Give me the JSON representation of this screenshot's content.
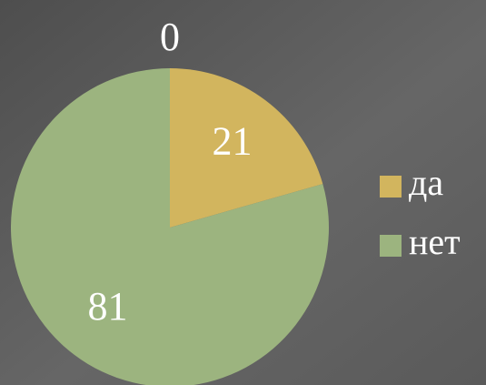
{
  "chart_data": {
    "type": "pie",
    "categories": [
      null,
      "да",
      "нет"
    ],
    "values": [
      0,
      21,
      81
    ],
    "colors": [
      null,
      "#d2b55e",
      "#9cb47f"
    ],
    "legend": "right"
  }
}
